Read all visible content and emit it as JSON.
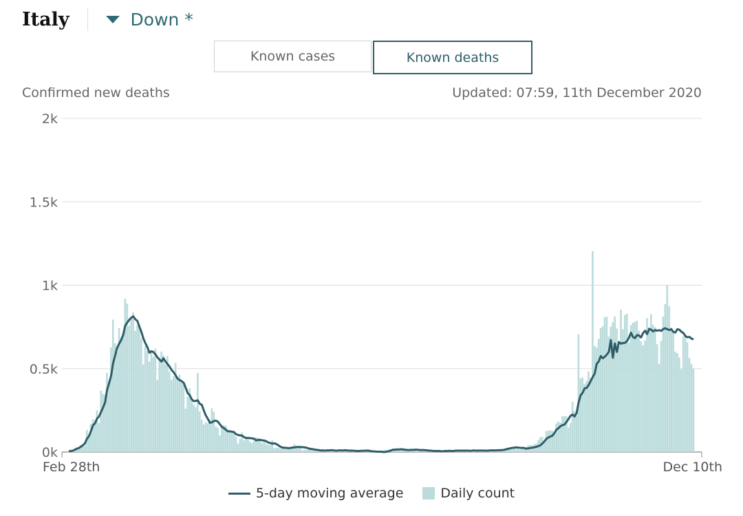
{
  "header": {
    "country": "Italy",
    "dropdown_label": "Down *"
  },
  "tabs": [
    {
      "label": "Known cases",
      "active": false
    },
    {
      "label": "Known deaths",
      "active": true
    }
  ],
  "subtitle": "Confirmed new deaths",
  "updated": "Updated: 07:59, 11th December 2020",
  "legend": {
    "line_label": "5-day moving average",
    "bar_label": "Daily count"
  },
  "colors": {
    "line": "#2e5d68",
    "bars": "#bcdcdc",
    "grid": "#dcdcdc",
    "accent": "#2e6b73"
  },
  "chart_data": {
    "type": "bar",
    "title": "",
    "ylabel": "Confirmed new deaths",
    "ylim": [
      0,
      2000
    ],
    "yticks": [
      0,
      500,
      1000,
      1500,
      2000
    ],
    "ytick_labels": [
      "0k",
      "0.5k",
      "1k",
      "1.5k",
      "2k"
    ],
    "xtick_labels": [
      "Feb 28th",
      "Dec 10th"
    ],
    "x_start": "2020-02-28",
    "x_end": "2020-12-10",
    "grid": true,
    "legend_position": "bottom",
    "series": [
      {
        "name": "Daily count",
        "type": "bar",
        "values": [
          5,
          4,
          8,
          12,
          27,
          28,
          41,
          49,
          36,
          133,
          97,
          168,
          196,
          189,
          250,
          175,
          368,
          349,
          345,
          475,
          427,
          627,
          793,
          651,
          601,
          743,
          683,
          712,
          919,
          889,
          756,
          812,
          837,
          727,
          760,
          766,
          681,
          525,
          636,
          604,
          542,
          610,
          570,
          619,
          431,
          566,
          602,
          578,
          525,
          575,
          482,
          433,
          454,
          534,
          437,
          464,
          420,
          415,
          260,
          333,
          382,
          323,
          285,
          269,
          474,
          243,
          194,
          165,
          179,
          172,
          195,
          262,
          242,
          153,
          145,
          99,
          162,
          161,
          156,
          130,
          119,
          117,
          111,
          92,
          50,
          78,
          117,
          70,
          87,
          75,
          60,
          55,
          71,
          88,
          85,
          72,
          53,
          65,
          47,
          44,
          43,
          71,
          23,
          26,
          26,
          22,
          23,
          23,
          21,
          30,
          28,
          30,
          47,
          24,
          34,
          30,
          9,
          15,
          13,
          15,
          14,
          9,
          7,
          8,
          8,
          6,
          17,
          11,
          12,
          12,
          8,
          5,
          14,
          8,
          10,
          8,
          15,
          8,
          5,
          5,
          4,
          8,
          13,
          12,
          10,
          4,
          2,
          5,
          5,
          3,
          1,
          0,
          5,
          1,
          0,
          0,
          10,
          13,
          12,
          15,
          15,
          20,
          8,
          13,
          11,
          10,
          18,
          15,
          5,
          13,
          20,
          10,
          15,
          2,
          12,
          10,
          6,
          3,
          8,
          5,
          7,
          4,
          4,
          7,
          5,
          9,
          6,
          6,
          12,
          3,
          7,
          8,
          15,
          5,
          7,
          10,
          11,
          7,
          6,
          13,
          9,
          9,
          5,
          7,
          14,
          10,
          8,
          8,
          15,
          12,
          7,
          14,
          9,
          10,
          17,
          16,
          17,
          24,
          27,
          24,
          28,
          24,
          18,
          24,
          14,
          20,
          22,
          28,
          40,
          42,
          40,
          47,
          50,
          72,
          88,
          91,
          62,
          126,
          128,
          131,
          128,
          110,
          172,
          184,
          176,
          216,
          215,
          214,
          147,
          174,
          300,
          244,
          218,
          705,
          441,
          448,
          407,
          427,
          483,
          445,
          1204,
          635,
          625,
          678,
          743,
          753,
          809,
          811,
          692,
          751,
          778,
          813,
          740,
          632,
          853,
          736,
          821,
          829,
          655,
          761,
          775,
          780,
          787,
          727,
          663,
          640,
          669,
          802,
          747,
          826,
          761,
          748,
          646,
          528,
          666,
          812,
          887,
          1000,
          875,
          746,
          719,
          601,
          593,
          567,
          496,
          693,
          694,
          657,
          564,
          528,
          499
        ]
      },
      {
        "name": "5-day moving average",
        "type": "line",
        "values": [
          5,
          6,
          8,
          14,
          20,
          24,
          32,
          40,
          52,
          79,
          95,
          125,
          160,
          172,
          200,
          213,
          240,
          267,
          297,
          373,
          412,
          457,
          533,
          579,
          625,
          650,
          671,
          703,
          758,
          776,
          792,
          805,
          813,
          796,
          786,
          752,
          721,
          681,
          652,
          629,
          595,
          604,
          599,
          585,
          567,
          554,
          542,
          562,
          542,
          527,
          512,
          492,
          478,
          460,
          440,
          431,
          425,
          415,
          386,
          353,
          341,
          316,
          305,
          306,
          310,
          289,
          283,
          249,
          219,
          199,
          175,
          178,
          186,
          188,
          182,
          166,
          150,
          143,
          133,
          124,
          124,
          122,
          119,
          107,
          102,
          100,
          98,
          89,
          84,
          84,
          83,
          82,
          79,
          70,
          72,
          73,
          70,
          69,
          64,
          57,
          54,
          50,
          52,
          48,
          40,
          32,
          27,
          26,
          25,
          23,
          24,
          27,
          28,
          30,
          30,
          30,
          29,
          28,
          26,
          21,
          19,
          17,
          15,
          13,
          12,
          9,
          10,
          8,
          10,
          10,
          11,
          11,
          9,
          8,
          10,
          10,
          9,
          11,
          10,
          8,
          9,
          8,
          7,
          6,
          6,
          7,
          7,
          8,
          9,
          8,
          5,
          4,
          3,
          2,
          2,
          2,
          0,
          0,
          3,
          5,
          10,
          14,
          14,
          16,
          15,
          17,
          15,
          14,
          12,
          12,
          13,
          13,
          14,
          14,
          12,
          12,
          12,
          11,
          10,
          8,
          8,
          6,
          6,
          6,
          6,
          4,
          5,
          6,
          6,
          7,
          6,
          6,
          8,
          8,
          8,
          8,
          8,
          8,
          9,
          7,
          8,
          10,
          8,
          9,
          9,
          9,
          9,
          8,
          8,
          10,
          10,
          10,
          10,
          11,
          11,
          12,
          13,
          16,
          19,
          22,
          25,
          26,
          28,
          27,
          25,
          25,
          24,
          20,
          22,
          24,
          26,
          28,
          31,
          35,
          40,
          51,
          63,
          79,
          87,
          93,
          98,
          114,
          134,
          143,
          155,
          161,
          165,
          180,
          198,
          217,
          225,
          213,
          233,
          298,
          340,
          355,
          382,
          384,
          402,
          425,
          449,
          471,
          529,
          543,
          575,
          562,
          571,
          584,
          600,
          671,
          565,
          651,
          600,
          659,
          650,
          653,
          654,
          664,
          686,
          715,
          689,
          683,
          701,
          698,
          687,
          713,
          727,
          707,
          738,
          733,
          723,
          731,
          727,
          730,
          726,
          737,
          742,
          736,
          731,
          736,
          720,
          716,
          736,
          733,
          721,
          713,
          695,
          688,
          690,
          680,
          675
        ]
      }
    ]
  }
}
